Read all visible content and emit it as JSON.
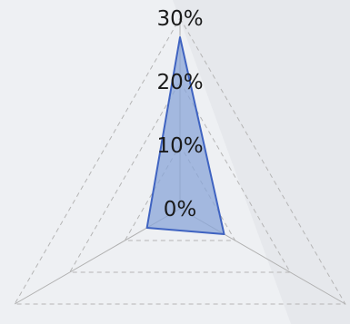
{
  "chart_data": {
    "type": "radar",
    "title": "",
    "axes": [
      "",
      "",
      ""
    ],
    "rlim": [
      0,
      30
    ],
    "ticks": [
      "0%",
      "10%",
      "20%",
      "30%"
    ],
    "tick_values": [
      0,
      10,
      20,
      30
    ],
    "grid": true,
    "legend": "none",
    "series": [
      {
        "values": [
          27,
          8,
          6
        ]
      }
    ],
    "colors": {
      "fill": "#8aa6d8",
      "stroke": "#3f63c1",
      "grid": "#b5b5b5",
      "spoke": "#b0b0b0",
      "background": "#eef0f3"
    }
  }
}
